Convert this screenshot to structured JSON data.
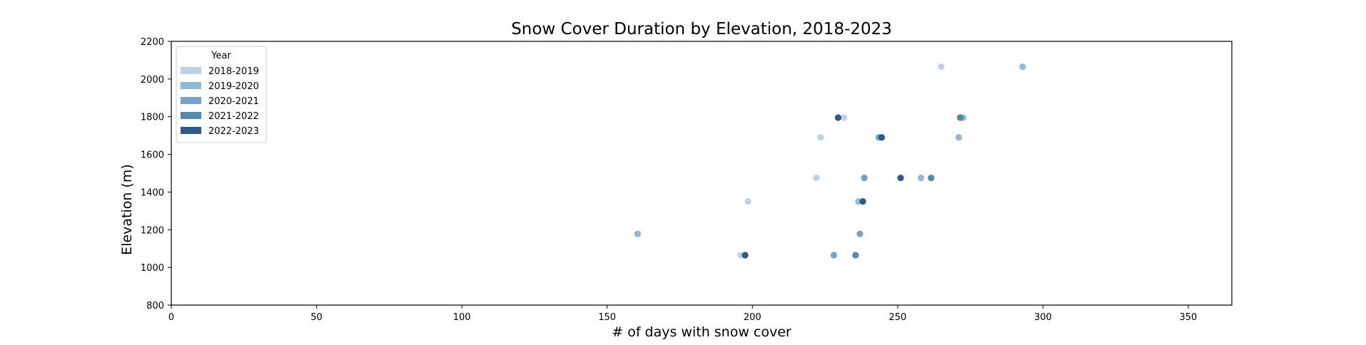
{
  "chart_data": {
    "type": "scatter",
    "title": "Snow Cover Duration by Elevation, 2018-2023",
    "xlabel": "# of days with snow cover",
    "ylabel": "Elevation (m)",
    "xlim": [
      0,
      365
    ],
    "ylim": [
      800,
      2200
    ],
    "x_ticks": [
      0,
      50,
      100,
      150,
      200,
      250,
      300,
      350
    ],
    "y_ticks": [
      800,
      1000,
      1200,
      1400,
      1600,
      1800,
      2000,
      2200
    ],
    "grid": false,
    "legend": {
      "title": "Year",
      "placement": "top-left"
    },
    "series": [
      {
        "name": "2018-2019",
        "color": "#bcd2e8",
        "points": [
          [
            265,
            2065
          ],
          [
            231.5,
            1795
          ],
          [
            223.5,
            1690
          ],
          [
            222,
            1475
          ],
          [
            198.5,
            1350
          ],
          [
            196,
            1065
          ]
        ]
      },
      {
        "name": "2019-2020",
        "color": "#91b8d6",
        "points": [
          [
            293,
            2065
          ],
          [
            272.5,
            1795
          ],
          [
            271,
            1690
          ],
          [
            258,
            1475
          ],
          [
            160.5,
            1178
          ],
          [
            236.5,
            1350
          ]
        ]
      },
      {
        "name": "2020-2021",
        "color": "#73a3c6",
        "points": [
          [
            243.5,
            1690
          ],
          [
            238.5,
            1475
          ],
          [
            237,
            1178
          ],
          [
            228,
            1065
          ]
        ]
      },
      {
        "name": "2021-2022",
        "color": "#528aae",
        "points": [
          [
            271.5,
            1795
          ],
          [
            261.5,
            1475
          ],
          [
            235.5,
            1065
          ]
        ]
      },
      {
        "name": "2022-2023",
        "color": "#2e5a87",
        "points": [
          [
            229.5,
            1795
          ],
          [
            244.5,
            1690
          ],
          [
            251,
            1475
          ],
          [
            238,
            1350
          ],
          [
            197.5,
            1065
          ]
        ]
      }
    ]
  }
}
